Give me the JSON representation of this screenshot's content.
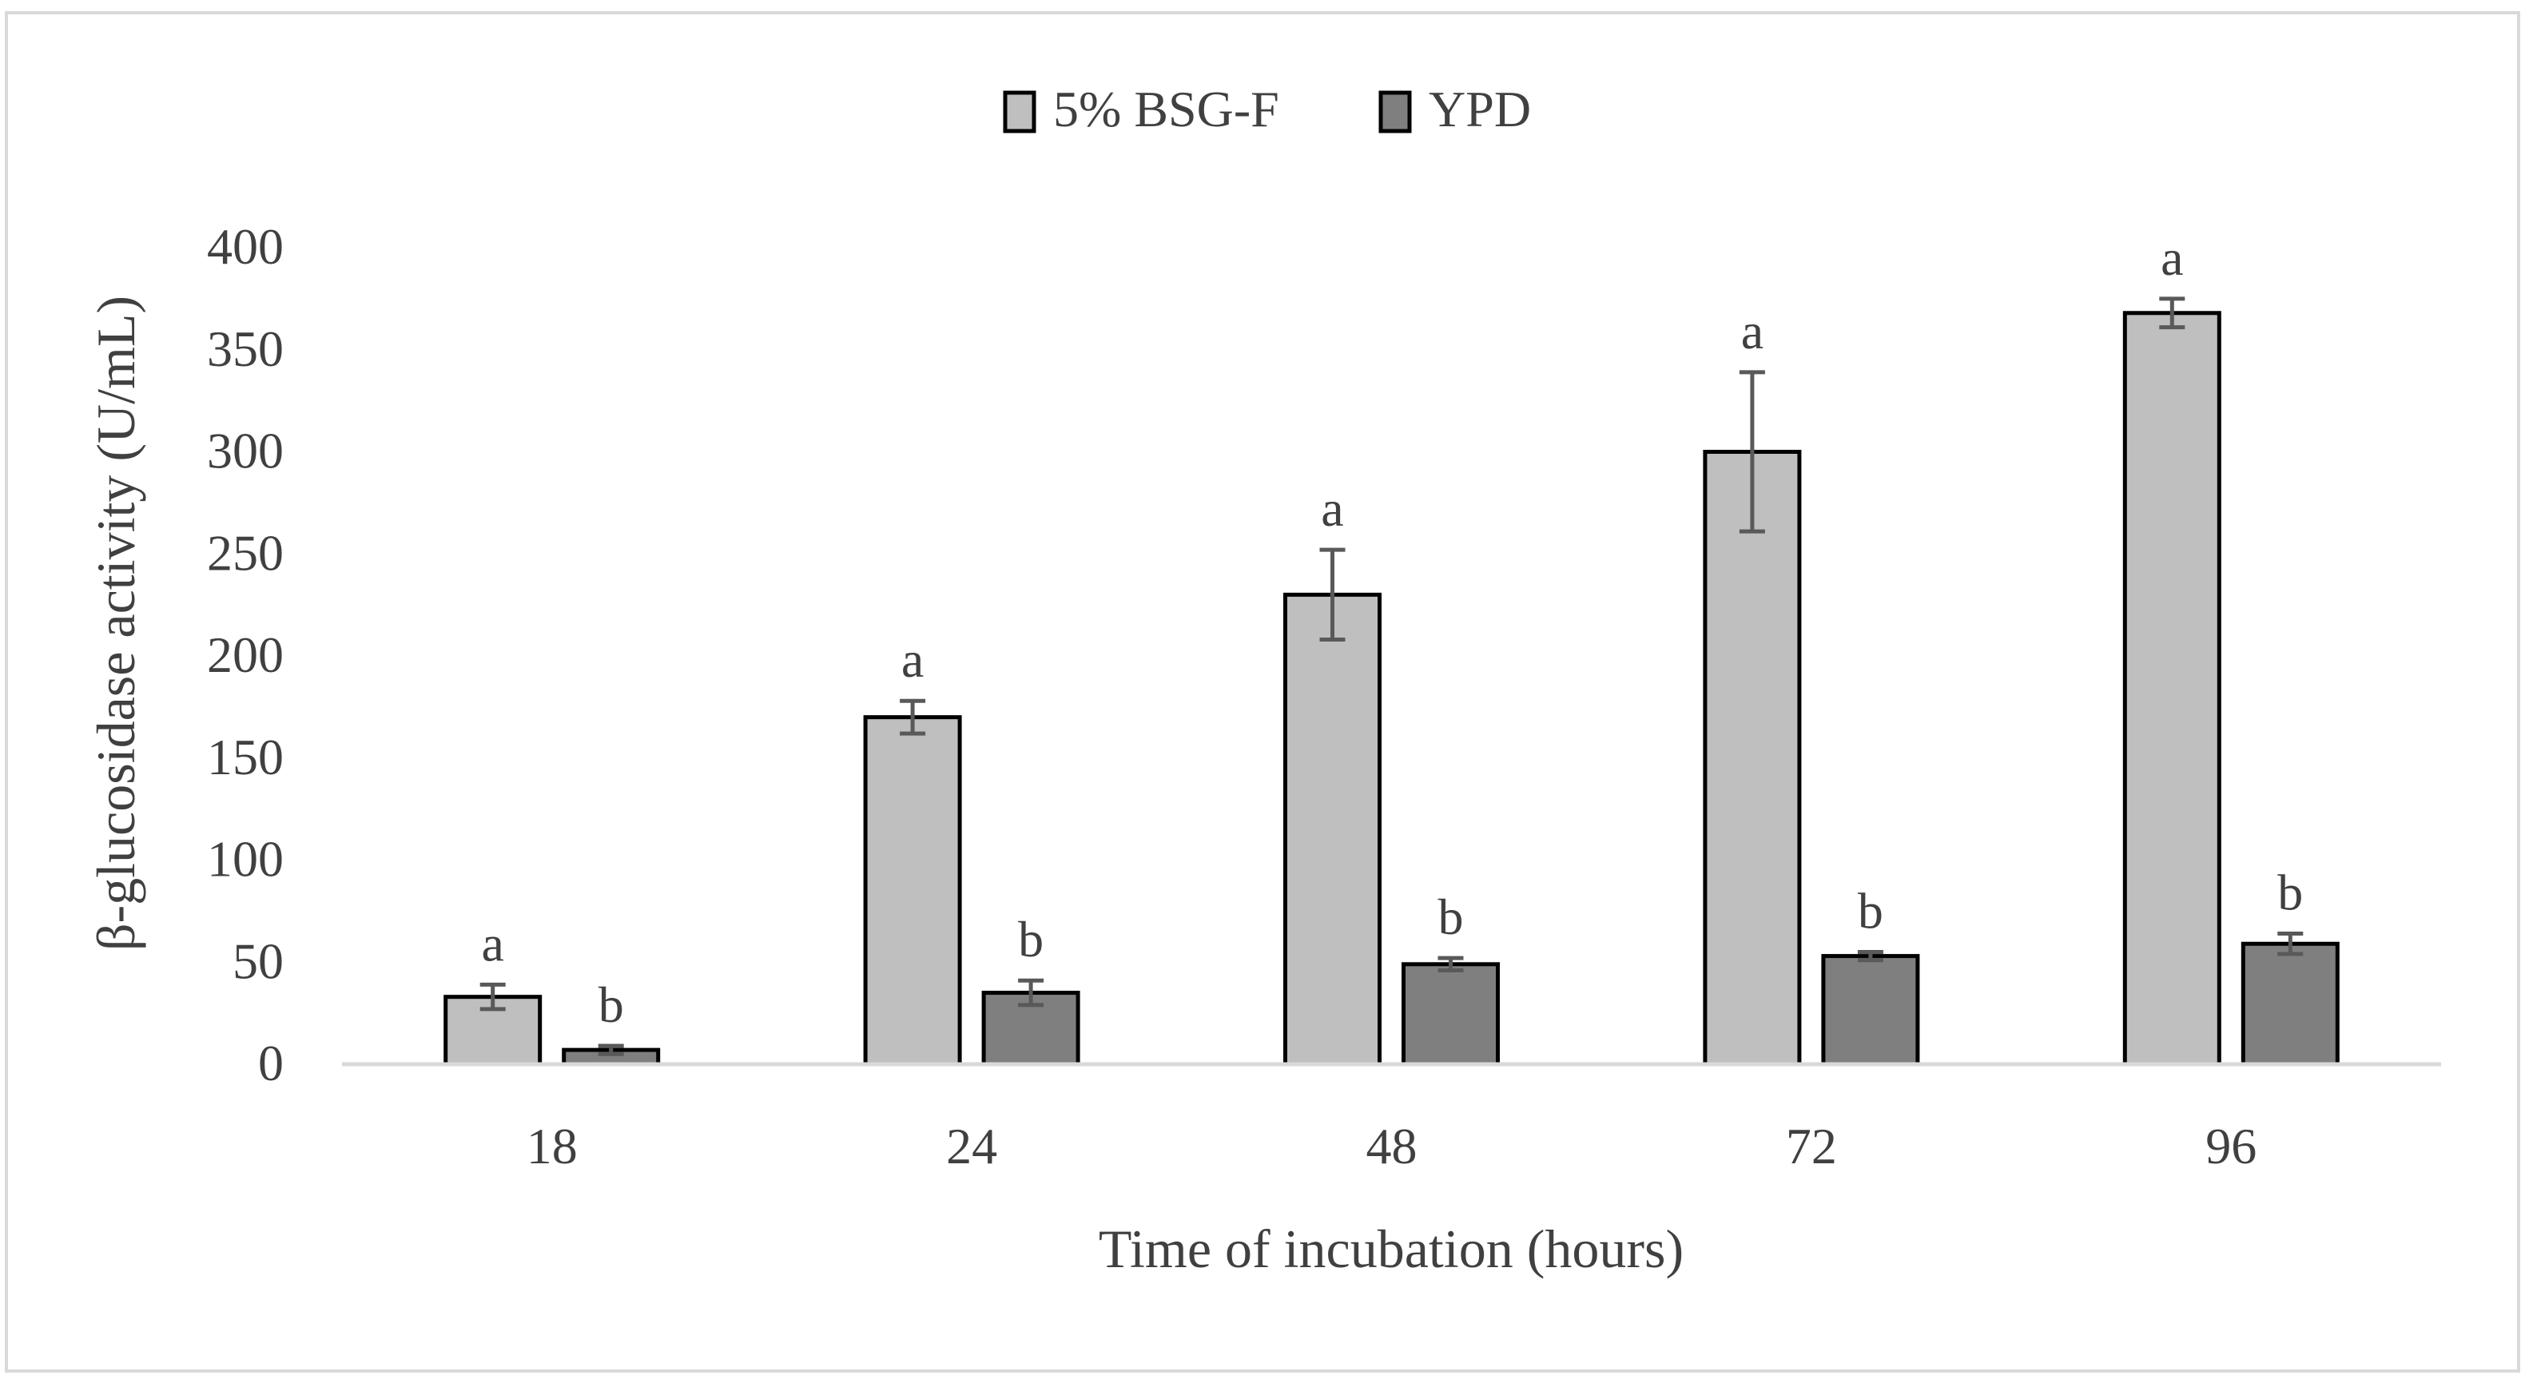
{
  "chart_data": {
    "type": "bar",
    "title": "",
    "xlabel": "Time of incubation (hours)",
    "ylabel": "β-glucosidase activity  (U/mL)",
    "categories": [
      "18",
      "24",
      "48",
      "72",
      "96"
    ],
    "ylim": [
      0,
      400
    ],
    "yticks": [
      0,
      50,
      100,
      150,
      200,
      250,
      300,
      350,
      400
    ],
    "ytick_labels": [
      "0",
      "50",
      "100",
      "150",
      "200",
      "250",
      "300",
      "350",
      "400"
    ],
    "grid": false,
    "legend_position": "top-center",
    "series": [
      {
        "name": "5% BSG-F",
        "color": "#bfbfbf",
        "values": [
          33,
          170,
          230,
          300,
          368
        ],
        "errors": [
          6,
          8,
          22,
          39,
          7
        ],
        "annotations": [
          "a",
          "a",
          "a",
          "a",
          "a"
        ]
      },
      {
        "name": "YPD",
        "color": "#7f7f7f",
        "values": [
          7,
          35,
          49,
          53,
          59
        ],
        "errors": [
          2,
          6,
          3,
          2,
          5
        ],
        "annotations": [
          "b",
          "b",
          "b",
          "b",
          "b"
        ]
      }
    ]
  }
}
